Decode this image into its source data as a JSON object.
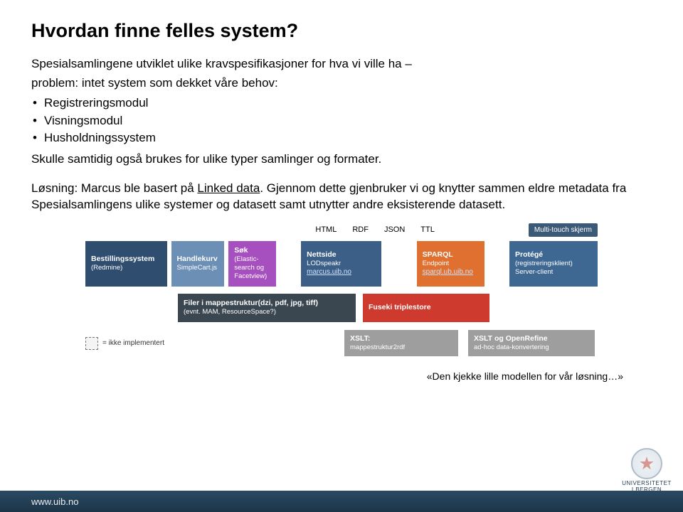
{
  "title": "Hvordan finne felles system?",
  "para1a": "Spesialsamlingene utviklet ulike kravspesifikasjoner for hva vi ville ha –",
  "para1b": "problem: intet system som dekket våre behov:",
  "bullets": [
    "Registreringsmodul",
    "Visningsmodul",
    "Husholdningssystem"
  ],
  "para2": "Skulle samtidig også brukes for ulike typer samlinger og formater.",
  "para3_pre": "Løsning: Marcus ble basert på ",
  "para3_link": "Linked data",
  "para3_post": ". Gjennom dette gjenbruker vi og knytter sammen eldre metadata fra Spesialsamlingens ulike systemer og datasett samt utnytter andre eksisterende datasett.",
  "diagram": {
    "formats": [
      "HTML",
      "RDF",
      "JSON",
      "TTL"
    ],
    "multitouch": "Multi-touch skjerm",
    "row1": {
      "bestill": {
        "title": "Bestillingssystem",
        "sub": "(Redmine)"
      },
      "handle": {
        "title": "Handlekurv",
        "sub": "SimpleCart.js"
      },
      "sok": {
        "title": "Søk",
        "sub": "(Elastic-\nsearch og\nFacetview)"
      },
      "nett": {
        "title": "Nettside",
        "sub": "LODspeakr",
        "link": "marcus.uib.no"
      },
      "sparql": {
        "title": "SPARQL",
        "sub": "Endpoint",
        "link": "sparql.ub.uib.no"
      },
      "protege": {
        "title": "Protégé",
        "sub": "(registreringsklient)\nServer-client"
      }
    },
    "row2": {
      "filer": {
        "title": "Filer i mappestruktur(dzi, pdf, jpg, tiff)",
        "sub": "(evnt. MAM, ResourceSpace?)"
      },
      "fuseki": {
        "title": "Fuseki triplestore"
      }
    },
    "row3": {
      "ikke": "= ikke implementert",
      "xslt1": {
        "title": "XSLT:",
        "sub": "mappestruktur2rdf"
      },
      "xslt2": {
        "title": "XSLT og OpenRefine",
        "sub": "ad-hoc data-konvertering"
      }
    }
  },
  "caption": "«Den kjekke lille modellen for vår løsning…»",
  "footer_url": "www.uib.no",
  "logo": {
    "line1": "UNIVERSITETET",
    "line2": "I BERGEN"
  }
}
